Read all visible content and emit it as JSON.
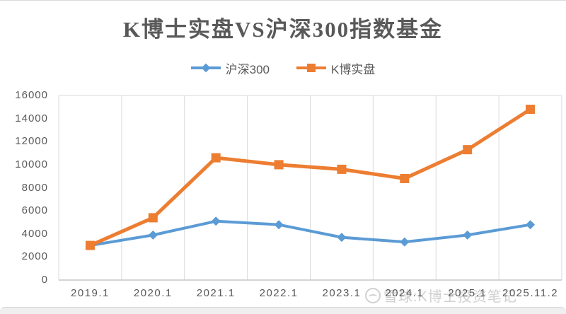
{
  "title": "K博士实盘VS沪深300指数基金",
  "legend": [
    {
      "label": "沪深300",
      "color": "#5B9BD5",
      "marker": "diamond"
    },
    {
      "label": "K博实盘",
      "color": "#ED7D31",
      "marker": "square"
    }
  ],
  "chart_data": {
    "type": "line",
    "title": "K博士实盘VS沪深300指数基金",
    "categories": [
      "2019.1",
      "2020.1",
      "2021.1",
      "2022.1",
      "2023.1",
      "2024.1",
      "2025.1",
      "2025.11.2"
    ],
    "series": [
      {
        "name": "沪深300",
        "color": "#5B9BD5",
        "marker": "diamond",
        "line_width": 4,
        "values": [
          3000,
          3900,
          5100,
          4800,
          3700,
          3300,
          3900,
          4800
        ]
      },
      {
        "name": "K博实盘",
        "color": "#ED7D31",
        "marker": "square",
        "line_width": 5,
        "values": [
          3000,
          5400,
          10600,
          10000,
          9600,
          8800,
          11300,
          14800
        ]
      }
    ],
    "ylim": [
      0,
      16000
    ],
    "yticks": [
      0,
      2000,
      4000,
      6000,
      8000,
      10000,
      12000,
      14000,
      16000
    ],
    "grid": "vertical-category-lines-plus-top-line",
    "grid_color": "#D9D9D9",
    "axis_color": "#C6C6C6",
    "tick_label_color": "#595959",
    "legend_position": "top-center"
  },
  "watermark": {
    "logo": "snowball-logo",
    "text": "雪球:K博士投资笔记"
  }
}
